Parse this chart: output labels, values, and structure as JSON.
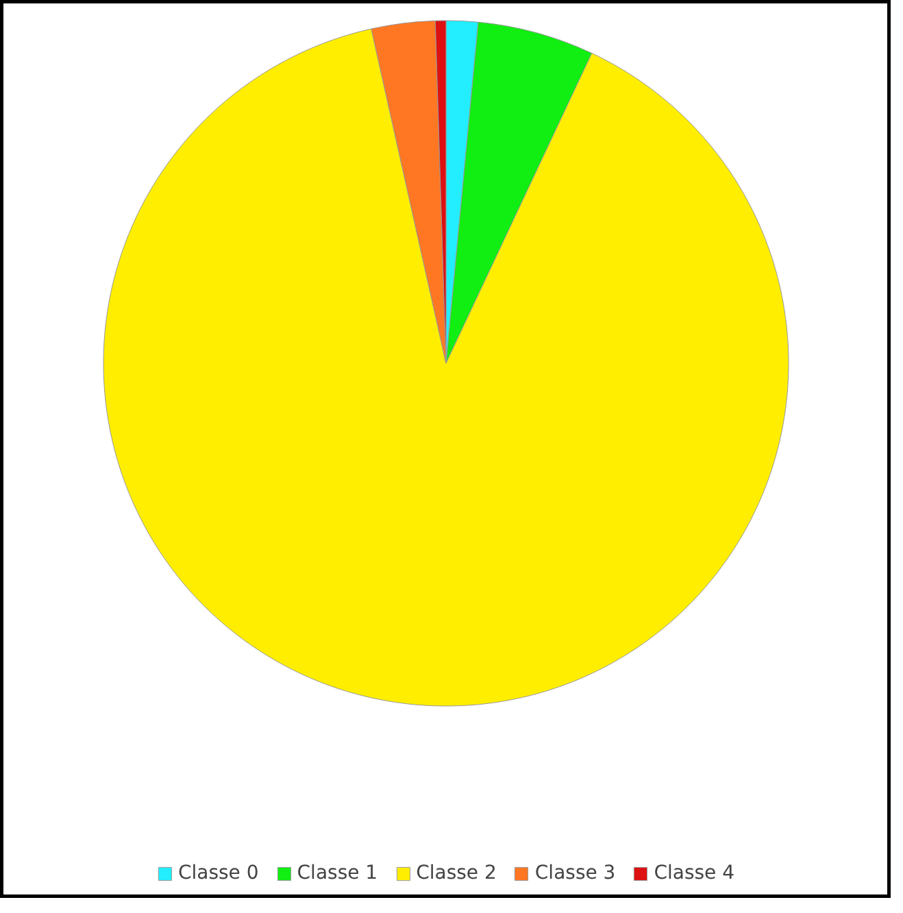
{
  "chart_data": {
    "type": "pie",
    "categories": [
      "Classe 0",
      "Classe 1",
      "Classe 2",
      "Classe 3",
      "Classe 4"
    ],
    "values": [
      1.5,
      5.5,
      89.5,
      3,
      0.5
    ],
    "colors": [
      "#22eeff",
      "#11ee11",
      "#ffee00",
      "#ff7722",
      "#dd1111"
    ],
    "legend": "bottom"
  }
}
